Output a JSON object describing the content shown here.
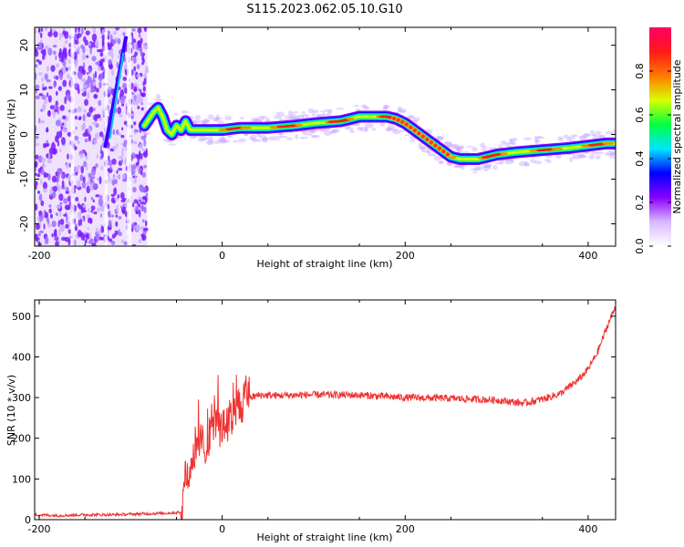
{
  "title": "S115.2023.062.05.10.G10",
  "chart_data": [
    {
      "type": "heatmap",
      "xlabel": "Height of straight line (km)",
      "ylabel": "Frequency (Hz)",
      "xlim": [
        -205,
        430
      ],
      "ylim": [
        -25,
        24
      ],
      "xticks": [
        -200,
        0,
        200,
        400
      ],
      "yticks": [
        -20,
        -10,
        0,
        10,
        20
      ],
      "colorbar": {
        "label": "Normalized spectral amplitude",
        "range": [
          0,
          1
        ],
        "ticks": [
          "0.0",
          "0.2",
          "0.4",
          "0.6",
          "0.8"
        ],
        "tick_values": [
          0.0,
          0.2,
          0.4,
          0.6,
          0.8
        ],
        "colors": [
          "#ffffff",
          "#d9b8ff",
          "#8800ff",
          "#0000ff",
          "#00e5ff",
          "#00ff40",
          "#d8ff00",
          "#ff7a00",
          "#ff1a1a",
          "#ff0066"
        ]
      },
      "noise_region": {
        "x": [
          -205,
          -82
        ],
        "color": "#7a1cff"
      },
      "ridge": {
        "x": [
          -85,
          -75,
          -70,
          -65,
          -60,
          -55,
          -50,
          -45,
          -40,
          -35,
          -30,
          -20,
          0,
          20,
          50,
          80,
          100,
          130,
          150,
          180,
          190,
          200,
          210,
          220,
          230,
          240,
          250,
          260,
          280,
          300,
          320,
          350,
          380,
          400,
          420,
          430
        ],
        "y": [
          2,
          5,
          6,
          4,
          1,
          0,
          2,
          1,
          3,
          1,
          1,
          1,
          1,
          1.5,
          1.5,
          2,
          2.5,
          3,
          4,
          4,
          3.5,
          2.5,
          1,
          -0.5,
          -2,
          -3.5,
          -5,
          -5.5,
          -5.5,
          -4.5,
          -4,
          -3.5,
          -3,
          -2.5,
          -2,
          -2
        ]
      },
      "streak": {
        "x": [
          -128,
          -105
        ],
        "y": [
          -3,
          22
        ]
      }
    },
    {
      "type": "line",
      "xlabel": "Height of straight line (km)",
      "ylabel": "SNR (10 * v/v)",
      "xlim": [
        -205,
        430
      ],
      "ylim": [
        0,
        540
      ],
      "xticks": [
        -200,
        0,
        200,
        400
      ],
      "yticks": [
        0,
        100,
        200,
        300,
        400,
        500
      ],
      "color": "#f03232",
      "series": [
        {
          "x": [
            -205,
            -180,
            -150,
            -120,
            -90,
            -60,
            -45,
            -40,
            -35,
            -30,
            -25,
            -20,
            -15,
            -10,
            -5,
            0,
            5,
            10,
            15,
            20,
            25,
            30,
            40,
            60,
            100,
            150,
            200,
            250,
            300,
            330,
            350,
            370,
            390,
            400,
            410,
            420,
            430
          ],
          "y": [
            12,
            10,
            12,
            12,
            14,
            16,
            18,
            80,
            130,
            160,
            190,
            170,
            210,
            230,
            240,
            210,
            240,
            250,
            265,
            280,
            292,
            300,
            306,
            305,
            307,
            306,
            300,
            298,
            294,
            286,
            296,
            310,
            345,
            370,
            410,
            470,
            525
          ]
        }
      ]
    }
  ]
}
